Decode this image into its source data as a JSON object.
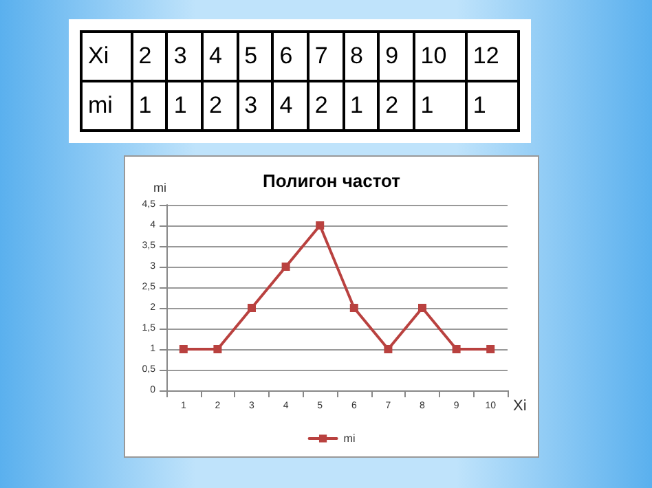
{
  "chart_data": [
    {
      "type": "other",
      "annotations": [
        "Xi",
        "2",
        "3",
        "4",
        "5",
        "6",
        "7",
        "8",
        "9",
        "10",
        "12",
        "mi",
        "1",
        "1",
        "2",
        "3",
        "4",
        "2",
        "1",
        "2",
        "1",
        "1"
      ]
    },
    {
      "type": "line",
      "title": "Полигон частот",
      "xlabel": "Xi",
      "ylabel": "mi",
      "categories": [
        "1",
        "2",
        "3",
        "4",
        "5",
        "6",
        "7",
        "8",
        "9",
        "10"
      ],
      "series": [
        {
          "name": "mi",
          "color": "#b9413f",
          "values": [
            1,
            1,
            2,
            3,
            4,
            2,
            1,
            2,
            1,
            1
          ]
        }
      ],
      "ylim": [
        0,
        4.5
      ],
      "yticks": [
        0,
        {
          "value": 0.5,
          "label": "0,5"
        },
        1,
        {
          "value": 1.5,
          "label": "1,5"
        },
        2,
        {
          "value": 2.5,
          "label": "2,5"
        },
        3,
        {
          "value": 3.5,
          "label": "3,5"
        },
        4,
        {
          "value": 4.5,
          "label": "4,5"
        }
      ],
      "grid": "y",
      "legend": "bottom",
      "marker": "square",
      "line_style": "solid"
    }
  ]
}
